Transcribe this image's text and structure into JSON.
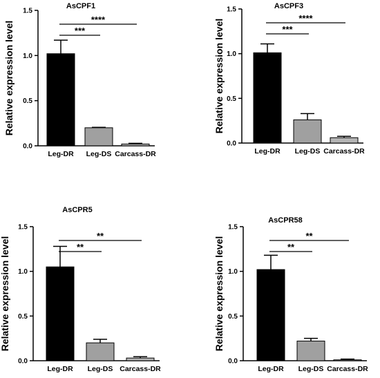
{
  "chart_data": [
    {
      "type": "bar",
      "title": "AsCPF1",
      "ylabel": "Relative expression level",
      "xlabel": "",
      "ylim": [
        0,
        1.5
      ],
      "yticks": [
        "0.0",
        "0.5",
        "1.0",
        "1.5"
      ],
      "categories": [
        "Leg-DR",
        "Leg-DS",
        "Carcass-DR"
      ],
      "values": [
        1.02,
        0.2,
        0.02
      ],
      "errors": [
        0.15,
        0.005,
        0.008
      ],
      "colors": [
        "#000000",
        "#a0a0a0",
        "#b4b4b4"
      ],
      "comparisons": [
        {
          "from": 0,
          "to": 1,
          "label": "***"
        },
        {
          "from": 0,
          "to": 2,
          "label": "****"
        }
      ]
    },
    {
      "type": "bar",
      "title": "AsCPF3",
      "ylabel": "Relative expression level",
      "xlabel": "",
      "ylim": [
        0,
        1.5
      ],
      "yticks": [
        "0.0",
        "0.5",
        "1.0",
        "1.5"
      ],
      "categories": [
        "Leg-DR",
        "Leg-DS",
        "Carcass-DR"
      ],
      "values": [
        1.01,
        0.26,
        0.06
      ],
      "errors": [
        0.1,
        0.07,
        0.015
      ],
      "colors": [
        "#000000",
        "#a0a0a0",
        "#b4b4b4"
      ],
      "comparisons": [
        {
          "from": 0,
          "to": 1,
          "label": "***"
        },
        {
          "from": 0,
          "to": 2,
          "label": "****"
        }
      ]
    },
    {
      "type": "bar",
      "title": "AsCPR5",
      "ylabel": "Relative expression level",
      "xlabel": "",
      "ylim": [
        0,
        1.5
      ],
      "yticks": [
        "0.0",
        "0.5",
        "1.0",
        "1.5"
      ],
      "categories": [
        "Leg-DR",
        "Leg-DS",
        "Carcass-DR"
      ],
      "values": [
        1.05,
        0.2,
        0.03
      ],
      "errors": [
        0.23,
        0.04,
        0.015
      ],
      "colors": [
        "#000000",
        "#a0a0a0",
        "#b4b4b4"
      ],
      "comparisons": [
        {
          "from": 0,
          "to": 1,
          "label": "**"
        },
        {
          "from": 0,
          "to": 2,
          "label": "**"
        }
      ]
    },
    {
      "type": "bar",
      "title": "AsCPR58",
      "ylabel": "Relative expression level",
      "xlabel": "",
      "ylim": [
        0,
        1.5
      ],
      "yticks": [
        "0.0",
        "0.5",
        "1.0",
        "1.5"
      ],
      "categories": [
        "Leg-DR",
        "Leg-DS",
        "Carcass-DR"
      ],
      "values": [
        1.02,
        0.22,
        0.01
      ],
      "errors": [
        0.16,
        0.03,
        0.008
      ],
      "colors": [
        "#000000",
        "#a0a0a0",
        "#b4b4b4"
      ],
      "comparisons": [
        {
          "from": 0,
          "to": 1,
          "label": "**"
        },
        {
          "from": 0,
          "to": 2,
          "label": "**"
        }
      ]
    }
  ]
}
